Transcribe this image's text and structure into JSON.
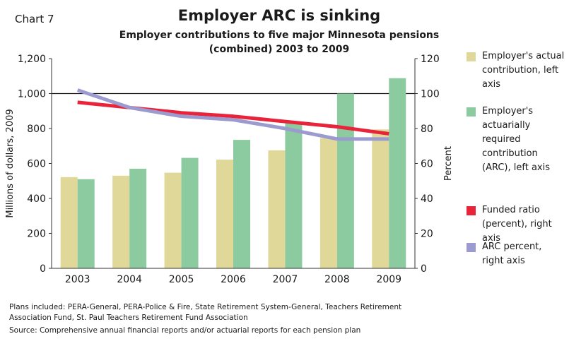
{
  "header": {
    "chart_label": "Chart 7",
    "title": "Employer ARC is sinking",
    "subtitle_line1": "Employer contributions to five major Minnesota pensions",
    "subtitle_line2": "(combined) 2003 to 2009"
  },
  "footer": {
    "notes": "Plans included: PERA-General, PERA-Police & Fire, State Retirement System-General, Teachers Retirement Association Fund, St. Paul Teachers Retirement Fund Association",
    "source": "Source: Comprehensive annual financial reports and/or actuarial reports for each pension plan"
  },
  "chart_data": {
    "type": "bar",
    "categories": [
      "2003",
      "2004",
      "2005",
      "2006",
      "2007",
      "2008",
      "2009"
    ],
    "left_axis": {
      "label": "Millions of dollars, 2009",
      "ylim": [
        0,
        1200
      ],
      "ticks": [
        "0",
        "200",
        "400",
        "600",
        "800",
        "1,000",
        "1,200"
      ]
    },
    "right_axis": {
      "label": "Percent",
      "ylim": [
        0,
        120
      ],
      "ticks": [
        "0",
        "20",
        "40",
        "60",
        "80",
        "100",
        "120"
      ]
    },
    "reference_line": {
      "axis": "left",
      "value": 1000
    },
    "bar_series": [
      {
        "name": "Employer's actual contribution, left axis",
        "color": "#e0d898",
        "values": [
          522,
          530,
          547,
          622,
          675,
          745,
          795
        ]
      },
      {
        "name": "Employer's actuarially required contribution (ARC), left axis",
        "color": "#8ccaa0",
        "values": [
          510,
          570,
          632,
          735,
          840,
          1000,
          1088
        ]
      }
    ],
    "line_series": [
      {
        "name": "Funded ratio (percent), right axis",
        "color": "#e8233a",
        "values": [
          95,
          92,
          89,
          87,
          84,
          81,
          77
        ]
      },
      {
        "name": "ARC percent, right axis",
        "color": "#9b9bd0",
        "values": [
          102,
          92,
          87,
          85,
          80,
          74,
          74
        ]
      }
    ]
  }
}
